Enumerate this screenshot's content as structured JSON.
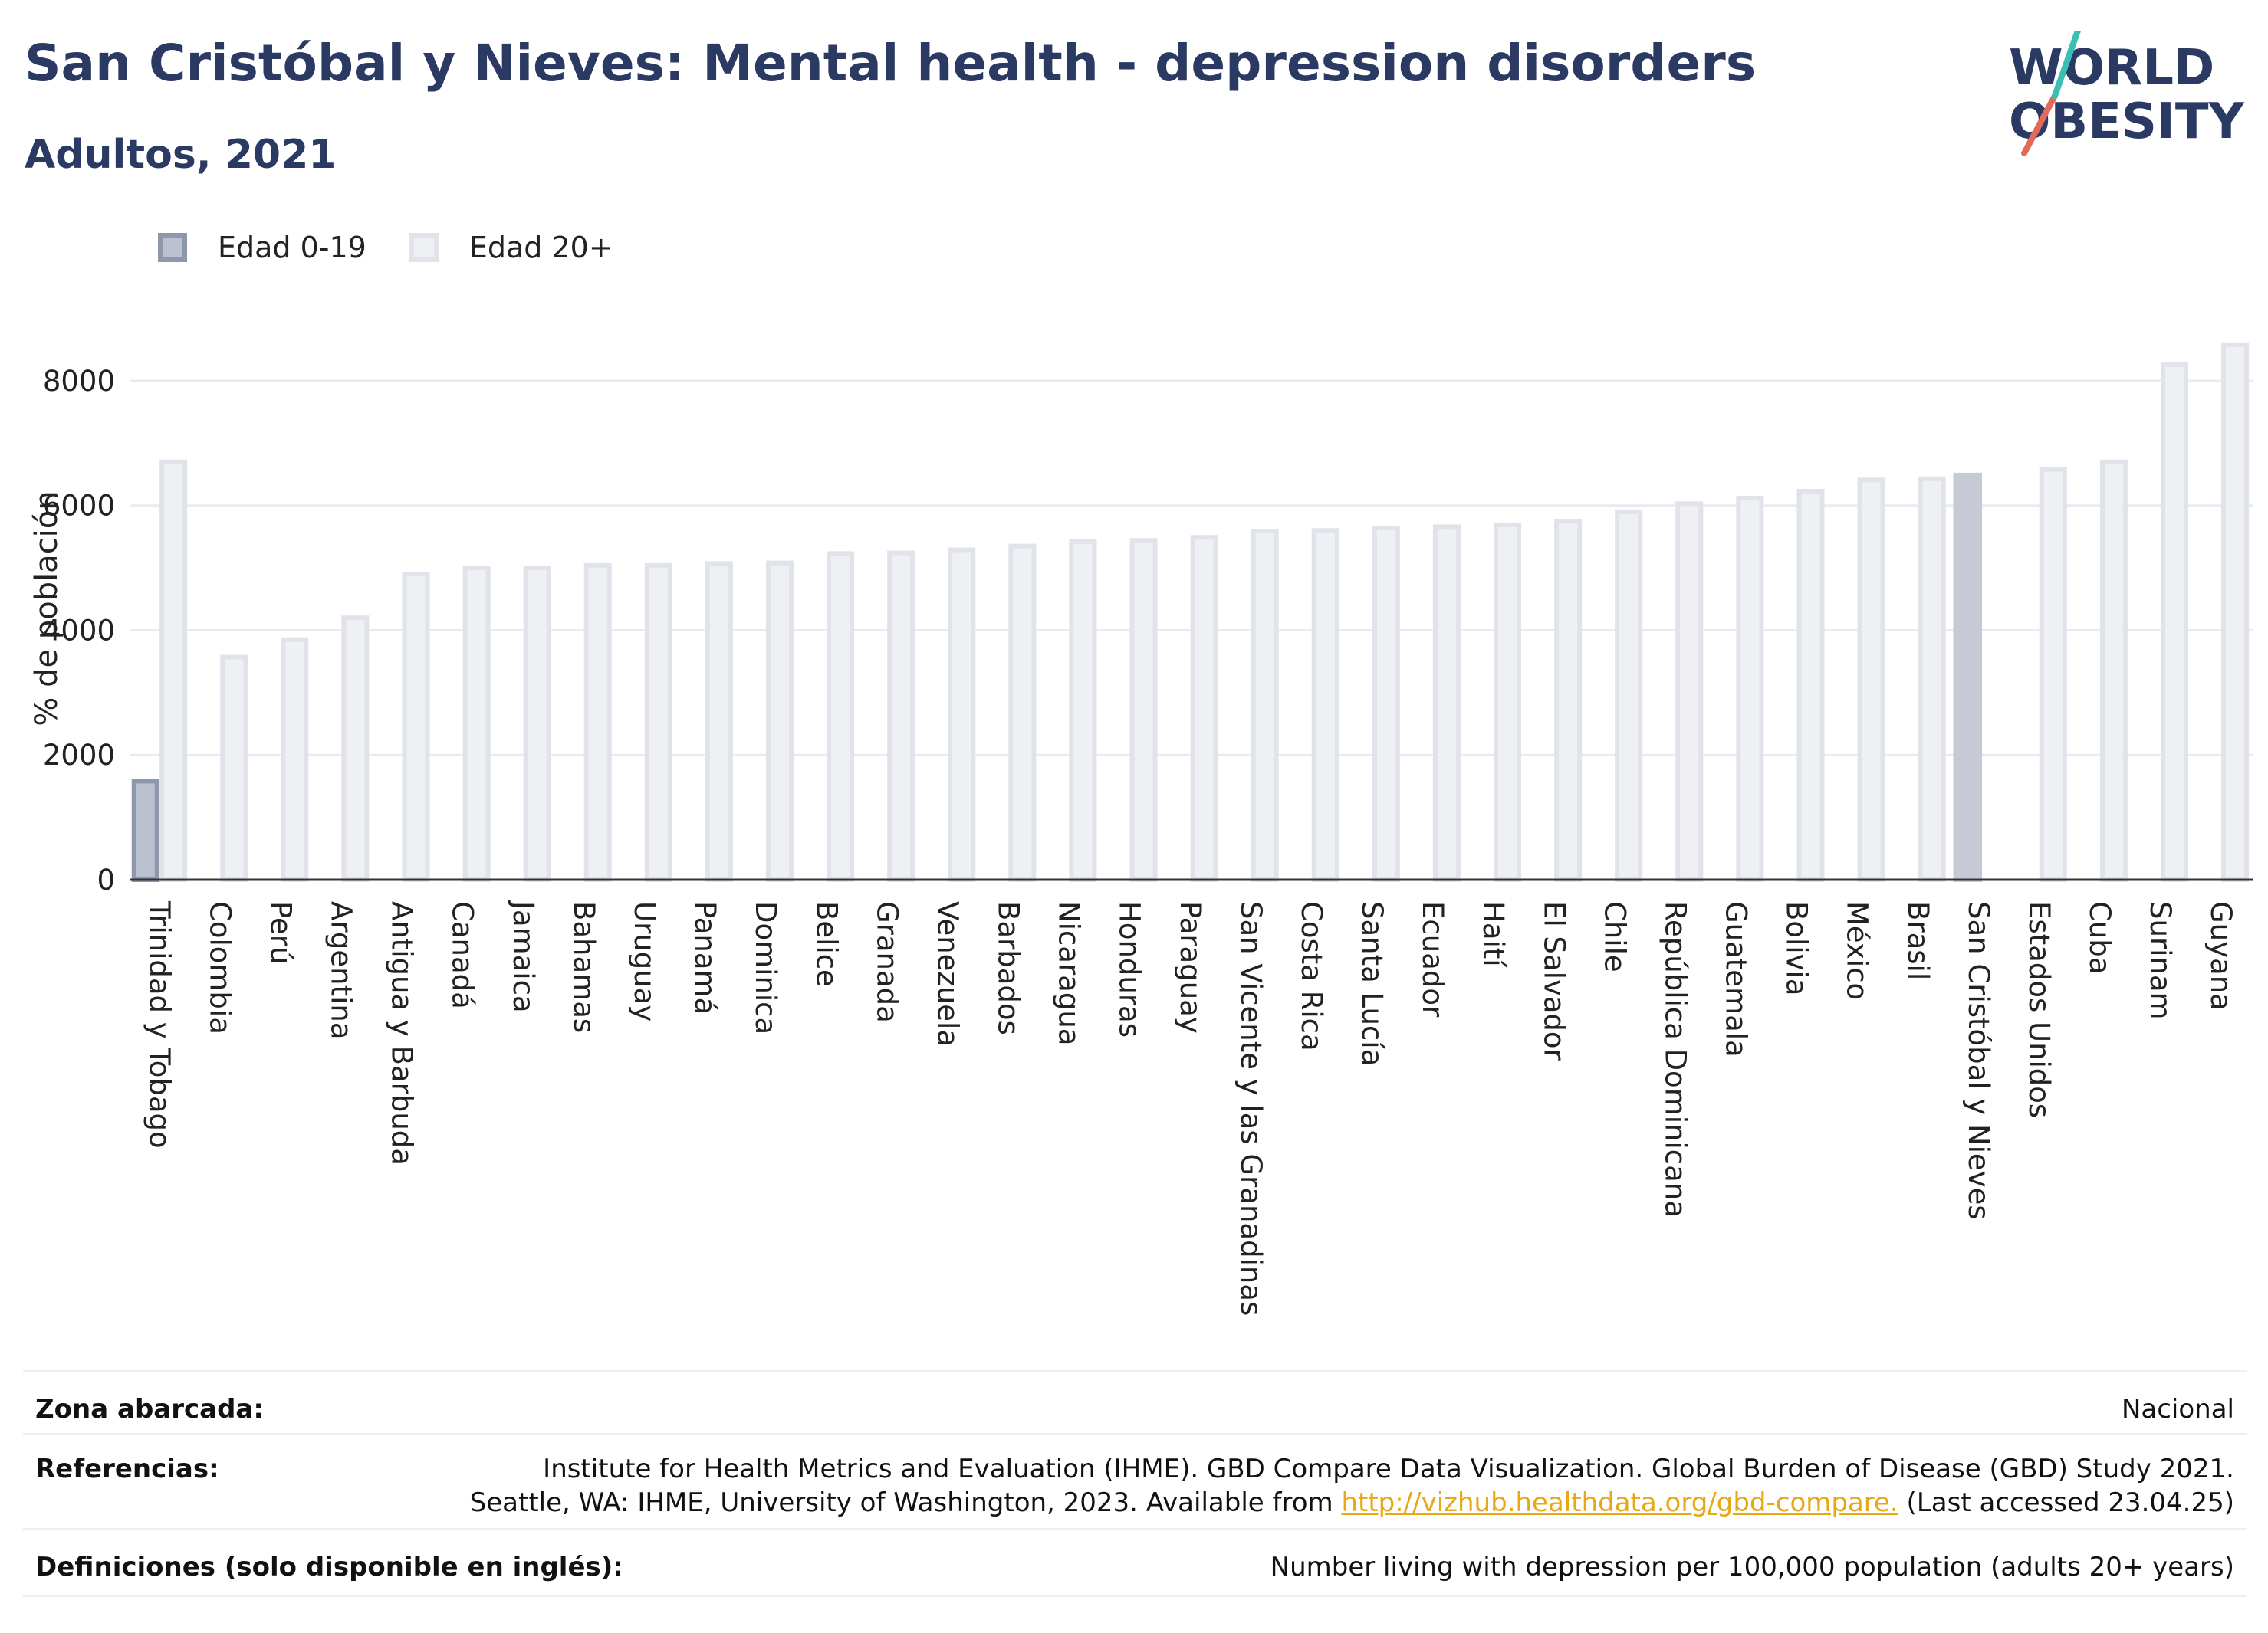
{
  "header": {
    "title": "San Cristóbal y Nieves: Mental health - depression disorders",
    "subtitle": "Adultos, 2021"
  },
  "logo": {
    "line1": "WORLD",
    "line2": "OBESITY"
  },
  "legend": [
    {
      "label": "Edad 0-19"
    },
    {
      "label": "Edad 20+"
    }
  ],
  "chart_data": {
    "type": "bar",
    "ylabel": "% de población",
    "ylim": [
      0,
      8700
    ],
    "yticks": [
      0,
      2000,
      4000,
      6000,
      8000
    ],
    "grid": true,
    "highlight": "San Cristóbal y Nieves",
    "categories": [
      "Trinidad y Tobago",
      "Colombia",
      "Perú",
      "Argentina",
      "Antigua y Barbuda",
      "Canadá",
      "Jamaica",
      "Bahamas",
      "Uruguay",
      "Panamá",
      "Dominica",
      "Belice",
      "Granada",
      "Venezuela",
      "Barbados",
      "Nicaragua",
      "Honduras",
      "Paraguay",
      "San Vicente y las Granadinas",
      "Costa Rica",
      "Santa Lucía",
      "Ecuador",
      "Haití",
      "El Salvador",
      "Chile",
      "República Dominicana",
      "Guatemala",
      "Bolivia",
      "México",
      "Brasil",
      "San Cristóbal y Nieves",
      "Estados Unidos",
      "Cuba",
      "Surinam",
      "Guyana"
    ],
    "series": [
      {
        "name": "Edad 0-19",
        "values": [
          1580,
          null,
          null,
          null,
          null,
          null,
          null,
          null,
          null,
          null,
          null,
          null,
          null,
          null,
          null,
          null,
          null,
          null,
          null,
          null,
          null,
          null,
          null,
          null,
          null,
          null,
          null,
          null,
          null,
          null,
          null,
          null,
          null,
          null,
          null
        ]
      },
      {
        "name": "Edad 20+",
        "values": [
          6700,
          3570,
          3850,
          4200,
          4900,
          5000,
          5000,
          5040,
          5040,
          5070,
          5080,
          5230,
          5240,
          5290,
          5350,
          5420,
          5440,
          5490,
          5590,
          5600,
          5640,
          5660,
          5690,
          5750,
          5900,
          6030,
          6120,
          6230,
          6410,
          6430,
          6490,
          6580,
          6700,
          8260,
          8580
        ]
      }
    ],
    "colors": {
      "age0": "#bcc1d1",
      "age0_border": "#8f97ad",
      "age20": "#eff0f4",
      "age20_border": "#e1e3ea",
      "highlight": "#c6cad7"
    }
  },
  "footer": {
    "rows": [
      {
        "key": "Zona abarcada:",
        "lines": [
          "Nacional"
        ]
      },
      {
        "key": "Referencias:",
        "lines": [
          "Institute for Health Metrics and Evaluation (IHME). GBD Compare Data Visualization. Global Burden of Disease (GBD) Study 2021."
        ],
        "line2_pre": "Seattle, WA: IHME, University of Washington, 2023. Available from ",
        "link": "http://vizhub.healthdata.org/gbd-compare.",
        "line2_post": " (Last accessed 23.04.25)"
      },
      {
        "key": "Definiciones (solo disponible en inglés):",
        "lines": [
          "Number living with depression per 100,000 population (adults 20+ years)"
        ]
      }
    ]
  }
}
